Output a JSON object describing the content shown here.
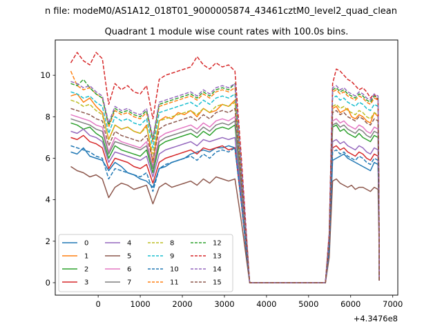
{
  "chart_data": {
    "type": "line",
    "suptitle": "n file: modeM0/AS1A12_018T01_9000005874_43461cztM0_level2_quad_clean",
    "title": "Quadrant 1 module wise count rates with 100.0s bins.",
    "xlabel": "",
    "ylabel": "",
    "x_offset_label": "+4.3476e8",
    "xlim": [
      -1020,
      7120
    ],
    "ylim": [
      -0.6,
      11.7
    ],
    "xticks": [
      "0",
      "1000",
      "2000",
      "3000",
      "4000",
      "5000",
      "6000",
      "7000"
    ],
    "xtick_values": [
      0,
      1000,
      2000,
      3000,
      4000,
      5000,
      6000,
      7000
    ],
    "yticks": [
      "0",
      "2",
      "4",
      "6",
      "8",
      "10"
    ],
    "ytick_values": [
      0,
      2,
      4,
      6,
      8,
      10
    ],
    "grid": false,
    "legend_position": "lower-left",
    "segments": [
      {
        "x_start": -650,
        "x_end": 3250
      },
      {
        "x_start": 5450,
        "x_end": 6650
      }
    ],
    "series": [
      {
        "name": "0",
        "color": "#1f77b4",
        "dashed": false,
        "seg1_values": [
          6.3,
          6.2,
          6.5,
          6.1,
          6.0,
          5.9,
          5.4,
          5.8,
          5.6,
          5.3,
          5.2,
          5.0,
          4.9,
          4.6,
          5.5,
          5.6,
          5.8,
          5.9,
          6.0,
          6.2,
          6.3,
          6.4,
          6.3,
          6.5,
          6.5,
          6.6,
          6.5
        ],
        "seg2_values": [
          5.9,
          6.0,
          6.1,
          6.2,
          6.0,
          5.9,
          5.8,
          5.7,
          5.6,
          5.5,
          5.4,
          5.8,
          5.7
        ]
      },
      {
        "name": "1",
        "color": "#ff7f0e",
        "dashed": false,
        "seg1_values": [
          9.0,
          9.1,
          8.7,
          8.9,
          8.5,
          8.2,
          6.9,
          7.6,
          7.4,
          7.5,
          7.3,
          7.2,
          7.6,
          5.8,
          7.8,
          8.0,
          7.9,
          8.2,
          8.1,
          8.3,
          8.0,
          8.4,
          8.2,
          8.3,
          8.6,
          8.5,
          8.8
        ],
        "seg2_values": [
          8.4,
          8.5,
          8.2,
          8.3,
          8.4,
          8.0,
          7.9,
          8.1,
          8.0,
          7.8,
          7.7,
          8.2,
          8.0
        ]
      },
      {
        "name": "2",
        "color": "#2ca02c",
        "dashed": false,
        "seg1_values": [
          7.7,
          7.6,
          7.4,
          7.5,
          7.2,
          7.0,
          6.0,
          6.6,
          6.4,
          6.3,
          6.2,
          6.1,
          6.4,
          5.3,
          6.6,
          6.8,
          6.9,
          7.0,
          7.1,
          7.2,
          7.0,
          7.3,
          7.1,
          7.4,
          7.5,
          7.4,
          7.6
        ],
        "seg2_values": [
          7.5,
          7.6,
          7.3,
          7.4,
          7.2,
          7.1,
          7.0,
          7.2,
          7.0,
          6.9,
          6.8,
          7.1,
          7.0
        ]
      },
      {
        "name": "3",
        "color": "#d62728",
        "dashed": false,
        "seg1_values": [
          7.0,
          6.9,
          7.1,
          6.8,
          6.7,
          6.5,
          5.5,
          6.0,
          5.9,
          5.8,
          5.6,
          5.5,
          5.7,
          4.8,
          5.8,
          6.0,
          6.1,
          6.2,
          6.3,
          6.4,
          6.2,
          6.5,
          6.4,
          6.5,
          6.6,
          6.4,
          6.5
        ],
        "seg2_values": [
          6.5,
          6.6,
          6.4,
          6.5,
          6.3,
          6.2,
          6.1,
          6.3,
          6.2,
          6.0,
          5.9,
          6.2,
          6.1
        ]
      },
      {
        "name": "4",
        "color": "#9467bd",
        "dashed": false,
        "seg1_values": [
          7.3,
          7.2,
          7.4,
          7.1,
          7.0,
          6.8,
          5.8,
          6.3,
          6.2,
          6.1,
          6.0,
          5.9,
          6.1,
          5.1,
          6.2,
          6.4,
          6.5,
          6.6,
          6.7,
          6.8,
          6.6,
          6.9,
          6.8,
          6.9,
          7.0,
          6.9,
          7.0
        ],
        "seg2_values": [
          6.8,
          6.9,
          6.7,
          6.8,
          6.6,
          6.5,
          6.4,
          6.6,
          6.5,
          6.3,
          6.2,
          6.5,
          6.4
        ]
      },
      {
        "name": "5",
        "color": "#8c564b",
        "dashed": false,
        "seg1_values": [
          5.6,
          5.4,
          5.3,
          5.1,
          5.2,
          5.0,
          4.1,
          4.6,
          4.8,
          4.7,
          4.5,
          4.6,
          4.7,
          3.8,
          4.6,
          4.8,
          4.6,
          4.7,
          4.8,
          4.9,
          4.7,
          5.0,
          4.8,
          5.1,
          5.0,
          4.9,
          5.0
        ],
        "seg2_values": [
          4.9,
          5.0,
          4.8,
          4.7,
          4.6,
          4.7,
          4.5,
          4.6,
          4.6,
          4.5,
          4.4,
          4.6,
          4.5
        ]
      },
      {
        "name": "6",
        "color": "#e377c2",
        "dashed": false,
        "seg1_values": [
          8.1,
          8.0,
          7.9,
          7.8,
          7.6,
          7.5,
          6.3,
          7.0,
          6.8,
          6.7,
          6.6,
          6.5,
          6.8,
          5.6,
          7.0,
          7.2,
          7.3,
          7.4,
          7.5,
          7.6,
          7.4,
          7.7,
          7.5,
          7.8,
          7.9,
          7.8,
          8.0
        ],
        "seg2_values": [
          7.8,
          7.9,
          7.7,
          7.8,
          7.6,
          7.5,
          7.4,
          7.6,
          7.5,
          7.3,
          7.2,
          7.5,
          7.4
        ]
      },
      {
        "name": "7",
        "color": "#7f7f7f",
        "dashed": false,
        "seg1_values": [
          7.9,
          7.8,
          7.7,
          7.6,
          7.4,
          7.3,
          6.2,
          6.8,
          6.7,
          6.6,
          6.5,
          6.4,
          6.6,
          5.5,
          6.8,
          7.0,
          7.1,
          7.2,
          7.3,
          7.4,
          7.2,
          7.5,
          7.3,
          7.6,
          7.7,
          7.6,
          7.8
        ],
        "seg2_values": [
          7.6,
          7.7,
          7.5,
          7.6,
          7.4,
          7.3,
          7.2,
          7.4,
          7.3,
          7.1,
          7.0,
          7.3,
          7.2
        ]
      },
      {
        "name": "8",
        "color": "#bcbd22",
        "dashed": true,
        "seg1_values": [
          8.8,
          8.7,
          8.5,
          8.6,
          8.3,
          8.1,
          6.9,
          7.6,
          7.4,
          7.5,
          7.3,
          7.2,
          7.5,
          6.2,
          7.8,
          7.9,
          8.0,
          8.1,
          8.2,
          8.3,
          8.1,
          8.4,
          8.2,
          8.5,
          8.6,
          8.5,
          8.7
        ],
        "seg2_values": [
          8.5,
          8.6,
          8.4,
          8.5,
          8.3,
          8.2,
          8.1,
          8.3,
          8.2,
          8.0,
          7.9,
          8.2,
          8.1
        ]
      },
      {
        "name": "9",
        "color": "#17becf",
        "dashed": true,
        "seg1_values": [
          9.2,
          9.1,
          8.9,
          9.0,
          8.7,
          8.5,
          7.2,
          8.0,
          7.8,
          7.9,
          7.7,
          7.6,
          7.9,
          6.5,
          8.2,
          8.3,
          8.4,
          8.5,
          8.6,
          8.7,
          8.5,
          8.8,
          8.6,
          8.9,
          9.0,
          8.9,
          9.1
        ],
        "seg2_values": [
          8.9,
          9.0,
          8.8,
          8.9,
          8.7,
          8.6,
          8.5,
          8.7,
          8.6,
          8.4,
          8.3,
          8.6,
          8.5
        ]
      },
      {
        "name": "10",
        "color": "#1f77b4",
        "dashed": true,
        "seg1_values": [
          6.6,
          6.5,
          6.4,
          6.3,
          6.1,
          6.0,
          5.0,
          5.5,
          5.4,
          5.3,
          5.2,
          5.1,
          5.3,
          4.4,
          5.5,
          5.7,
          5.8,
          5.9,
          6.0,
          6.1,
          5.9,
          6.2,
          6.0,
          6.3,
          6.4,
          6.3,
          6.5
        ],
        "seg2_values": [
          6.3,
          6.4,
          6.2,
          6.3,
          6.1,
          6.0,
          5.9,
          6.1,
          6.0,
          5.8,
          5.7,
          6.0,
          5.9
        ]
      },
      {
        "name": "11",
        "color": "#ff7f0e",
        "dashed": true,
        "seg1_values": [
          10.2,
          9.5,
          9.3,
          9.4,
          9.1,
          8.9,
          7.5,
          8.3,
          8.1,
          8.2,
          8.0,
          7.9,
          8.2,
          6.8,
          8.5,
          8.6,
          8.7,
          8.8,
          8.9,
          9.0,
          8.8,
          9.1,
          8.9,
          9.2,
          9.3,
          9.2,
          9.4
        ],
        "seg2_values": [
          9.2,
          9.3,
          9.1,
          9.2,
          9.0,
          8.9,
          8.8,
          9.0,
          8.9,
          8.7,
          8.6,
          8.9,
          8.8
        ]
      },
      {
        "name": "12",
        "color": "#2ca02c",
        "dashed": true,
        "seg1_values": [
          9.6,
          9.5,
          9.8,
          9.4,
          9.1,
          8.9,
          7.6,
          8.4,
          8.2,
          8.3,
          8.1,
          8.0,
          8.3,
          6.9,
          8.6,
          8.7,
          8.8,
          8.9,
          9.0,
          9.1,
          8.9,
          9.2,
          9.0,
          9.3,
          9.4,
          9.3,
          9.6
        ],
        "seg2_values": [
          9.3,
          9.4,
          9.2,
          9.3,
          9.1,
          9.0,
          8.9,
          9.1,
          9.0,
          8.8,
          8.7,
          9.0,
          8.9
        ]
      },
      {
        "name": "13",
        "color": "#d62728",
        "dashed": true,
        "seg1_values": [
          10.6,
          11.1,
          10.7,
          10.5,
          11.1,
          10.8,
          8.6,
          9.6,
          9.3,
          9.5,
          9.2,
          9.1,
          9.5,
          7.9,
          9.8,
          10.0,
          10.1,
          10.2,
          10.3,
          10.4,
          10.9,
          10.5,
          10.3,
          10.6,
          10.4,
          10.5,
          10.2
        ],
        "seg2_values": [
          9.6,
          10.3,
          10.2,
          10.0,
          9.8,
          9.7,
          9.5,
          9.3,
          9.4,
          9.2,
          8.9,
          9.1,
          8.8
        ]
      },
      {
        "name": "14",
        "color": "#9467bd",
        "dashed": true,
        "seg1_values": [
          9.7,
          9.6,
          9.4,
          9.5,
          9.2,
          9.0,
          7.7,
          8.5,
          8.3,
          8.4,
          8.2,
          8.1,
          8.4,
          7.0,
          8.7,
          8.8,
          8.9,
          9.0,
          9.1,
          9.2,
          9.0,
          9.3,
          9.1,
          9.4,
          9.5,
          9.4,
          9.6
        ],
        "seg2_values": [
          9.4,
          9.5,
          9.3,
          9.4,
          9.2,
          9.1,
          9.0,
          9.2,
          9.1,
          8.9,
          8.8,
          9.1,
          9.0
        ]
      },
      {
        "name": "15",
        "color": "#8c564b",
        "dashed": true,
        "seg1_values": [
          8.4,
          8.3,
          8.2,
          8.1,
          7.9,
          7.8,
          6.6,
          7.3,
          7.1,
          7.0,
          6.9,
          6.8,
          7.1,
          5.9,
          7.4,
          7.6,
          7.7,
          7.8,
          7.9,
          8.0,
          7.8,
          8.1,
          7.9,
          8.2,
          8.3,
          8.2,
          8.4
        ],
        "seg2_values": [
          8.2,
          8.3,
          8.1,
          8.2,
          8.0,
          7.9,
          7.8,
          8.0,
          7.9,
          7.7,
          7.6,
          7.9,
          7.8
        ]
      }
    ]
  }
}
